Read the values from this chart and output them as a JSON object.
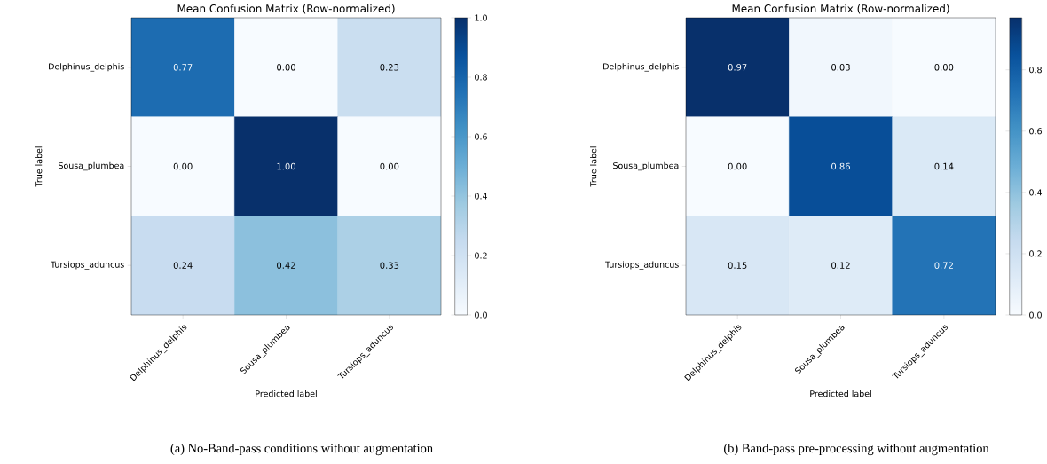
{
  "chart_data": [
    {
      "type": "heatmap",
      "title": "Mean Confusion Matrix (Row-normalized)",
      "xlabel": "Predicted label",
      "ylabel": "True label",
      "categories": [
        "Delphinus_delphis",
        "Sousa_plumbea",
        "Tursiops_aduncus"
      ],
      "y_categories": [
        "Delphinus_delphis",
        "Sousa_plumbea",
        "Tursiops_aduncus"
      ],
      "cells": [
        [
          0.77,
          0.0,
          0.23
        ],
        [
          0.0,
          1.0,
          0.0
        ],
        [
          0.24,
          0.42,
          0.33
        ]
      ],
      "cell_labels": [
        [
          "0.77",
          "0.00",
          "0.23"
        ],
        [
          "0.00",
          "1.00",
          "0.00"
        ],
        [
          "0.24",
          "0.42",
          "0.33"
        ]
      ],
      "clim": [
        0,
        1
      ],
      "cticks": [
        {
          "value": 0,
          "label": "0.0"
        },
        {
          "value": 0.2,
          "label": "0.2"
        },
        {
          "value": 0.4,
          "label": "0.4"
        },
        {
          "value": 0.6,
          "label": "0.6"
        },
        {
          "value": 0.8,
          "label": "0.8"
        },
        {
          "value": 1,
          "label": "1.0"
        }
      ],
      "annotations": [
        "(a) No-Band-pass conditions without augmentation"
      ]
    },
    {
      "type": "heatmap",
      "title": "Mean Confusion Matrix (Row-normalized)",
      "xlabel": "Predicted label",
      "ylabel": "True label",
      "categories": [
        "Delphinus_delphis",
        "Sousa_plumbea",
        "Tursiops_aduncus"
      ],
      "y_categories": [
        "Delphinus_delphis",
        "Sousa_plumbea",
        "Tursiops_aduncus"
      ],
      "cells": [
        [
          0.97,
          0.03,
          0.0
        ],
        [
          0.0,
          0.86,
          0.14
        ],
        [
          0.15,
          0.12,
          0.72
        ]
      ],
      "cell_labels": [
        [
          "0.97",
          "0.03",
          "0.00"
        ],
        [
          "0.00",
          "0.86",
          "0.14"
        ],
        [
          "0.15",
          "0.12",
          "0.72"
        ]
      ],
      "clim": [
        0,
        0.97
      ],
      "cticks": [
        {
          "value": 0,
          "label": "0.0"
        },
        {
          "value": 0.2,
          "label": "0.2"
        },
        {
          "value": 0.4,
          "label": "0.4"
        },
        {
          "value": 0.6,
          "label": "0.6"
        },
        {
          "value": 0.8,
          "label": "0.8"
        }
      ],
      "annotations": [
        "(b) Band-pass pre-processing without augmentation"
      ]
    }
  ]
}
